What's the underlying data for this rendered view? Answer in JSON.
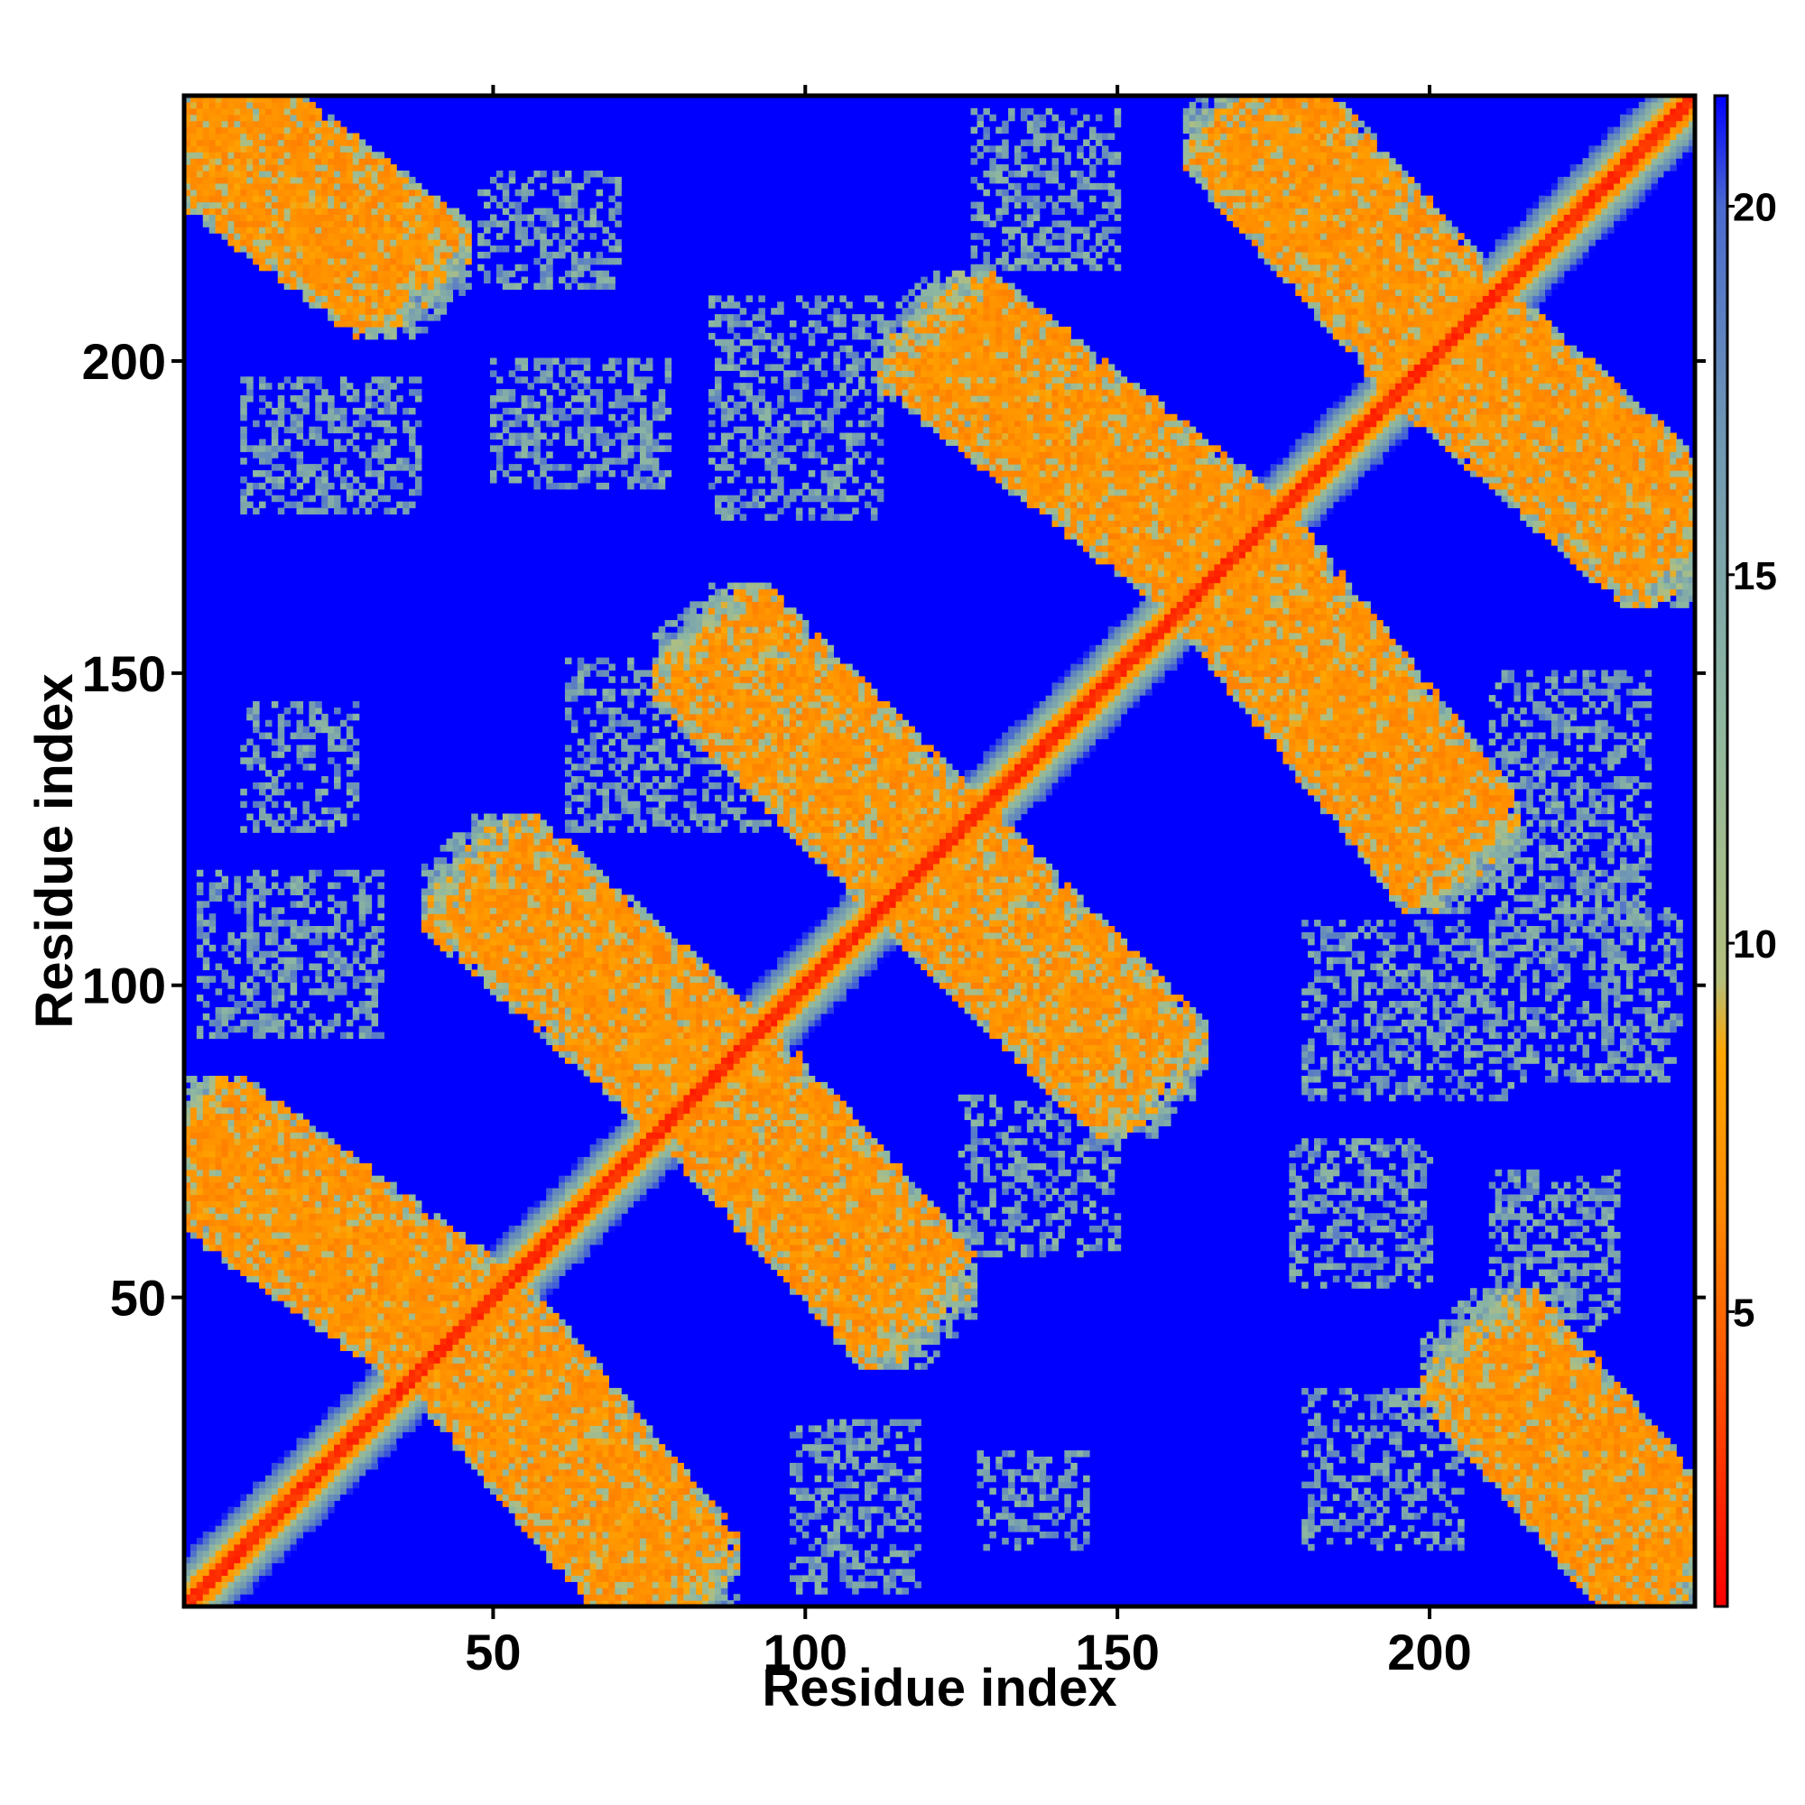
{
  "chart_data": {
    "type": "heatmap",
    "title": "",
    "xlabel": "Residue index",
    "ylabel": "Residue index",
    "xlim": [
      1,
      242
    ],
    "ylim": [
      1,
      242
    ],
    "xticks": [
      50,
      100,
      150,
      200
    ],
    "yticks": [
      50,
      100,
      150,
      200
    ],
    "grid": false,
    "colorbar": {
      "range": [
        1,
        21.5
      ],
      "ticks": [
        5,
        10,
        15,
        20
      ],
      "stops": [
        {
          "value": 1,
          "color": "#ff0000"
        },
        {
          "value": 4,
          "color": "#ff5000"
        },
        {
          "value": 6.5,
          "color": "#ff8c00"
        },
        {
          "value": 8.5,
          "color": "#ffa500"
        },
        {
          "value": 9.5,
          "color": "#b4bf7c"
        },
        {
          "value": 13,
          "color": "#8fb8a0"
        },
        {
          "value": 17,
          "color": "#6e96b4"
        },
        {
          "value": 20,
          "color": "#4a6ad0"
        },
        {
          "value": 21.5,
          "color": "#0000ff"
        }
      ]
    },
    "background_value": 21.5,
    "diagonal_band": {
      "core_value": 3,
      "band_half_width": 7
    },
    "contact_bands": [
      {
        "from": [
          1,
          240
        ],
        "to": [
          37,
          213
        ],
        "peak_value": 6,
        "orientation": "antidiagonal"
      },
      {
        "from": [
          1,
          76
        ],
        "to": [
          44,
          45
        ],
        "peak_value": 6,
        "orientation": "antidiagonal"
      },
      {
        "from": [
          45,
          45
        ],
        "to": [
          80,
          3
        ],
        "peak_value": 6,
        "orientation": "antidiagonal"
      },
      {
        "from": [
          48,
          118
        ],
        "to": [
          86,
          84
        ],
        "peak_value": 6,
        "orientation": "antidiagonal"
      },
      {
        "from": [
          86,
          84
        ],
        "to": [
          118,
          48
        ],
        "peak_value": 6,
        "orientation": "antidiagonal"
      },
      {
        "from": [
          85,
          155
        ],
        "to": [
          120,
          120
        ],
        "peak_value": 6,
        "orientation": "antidiagonal"
      },
      {
        "from": [
          120,
          120
        ],
        "to": [
          155,
          85
        ],
        "peak_value": 6,
        "orientation": "antidiagonal"
      },
      {
        "from": [
          121,
          205
        ],
        "to": [
          168,
          168
        ],
        "peak_value": 6,
        "orientation": "antidiagonal"
      },
      {
        "from": [
          168,
          168
        ],
        "to": [
          205,
          121
        ],
        "peak_value": 6,
        "orientation": "antidiagonal"
      },
      {
        "from": [
          170,
          240
        ],
        "to": [
          203,
          203
        ],
        "peak_value": 6,
        "orientation": "antidiagonal"
      },
      {
        "from": [
          203,
          203
        ],
        "to": [
          240,
          170
        ],
        "peak_value": 6,
        "orientation": "antidiagonal"
      },
      {
        "from": [
          208,
          42
        ],
        "to": [
          240,
          5
        ],
        "peak_value": 6,
        "orientation": "antidiagonal"
      }
    ],
    "sparse_patches": [
      {
        "x": [
          48,
          70
        ],
        "y": [
          212,
          230
        ]
      },
      {
        "x": [
          10,
          38
        ],
        "y": [
          176,
          197
        ]
      },
      {
        "x": [
          50,
          78
        ],
        "y": [
          180,
          200
        ]
      },
      {
        "x": [
          85,
          112
        ],
        "y": [
          175,
          210
        ]
      },
      {
        "x": [
          127,
          150
        ],
        "y": [
          215,
          240
        ]
      },
      {
        "x": [
          10,
          28
        ],
        "y": [
          125,
          145
        ]
      },
      {
        "x": [
          3,
          32
        ],
        "y": [
          92,
          118
        ]
      },
      {
        "x": [
          62,
          95
        ],
        "y": [
          125,
          152
        ]
      },
      {
        "x": [
          125,
          150
        ],
        "y": [
          57,
          82
        ]
      },
      {
        "x": [
          180,
          215
        ],
        "y": [
          82,
          110
        ]
      },
      {
        "x": [
          210,
          235
        ],
        "y": [
          110,
          150
        ]
      },
      {
        "x": [
          178,
          200
        ],
        "y": [
          52,
          75
        ]
      },
      {
        "x": [
          210,
          230
        ],
        "y": [
          45,
          70
        ]
      },
      {
        "x": [
          180,
          205
        ],
        "y": [
          10,
          35
        ]
      },
      {
        "x": [
          98,
          118
        ],
        "y": [
          3,
          30
        ]
      },
      {
        "x": [
          128,
          145
        ],
        "y": [
          10,
          25
        ]
      },
      {
        "x": [
          215,
          240
        ],
        "y": [
          85,
          112
        ]
      }
    ]
  }
}
